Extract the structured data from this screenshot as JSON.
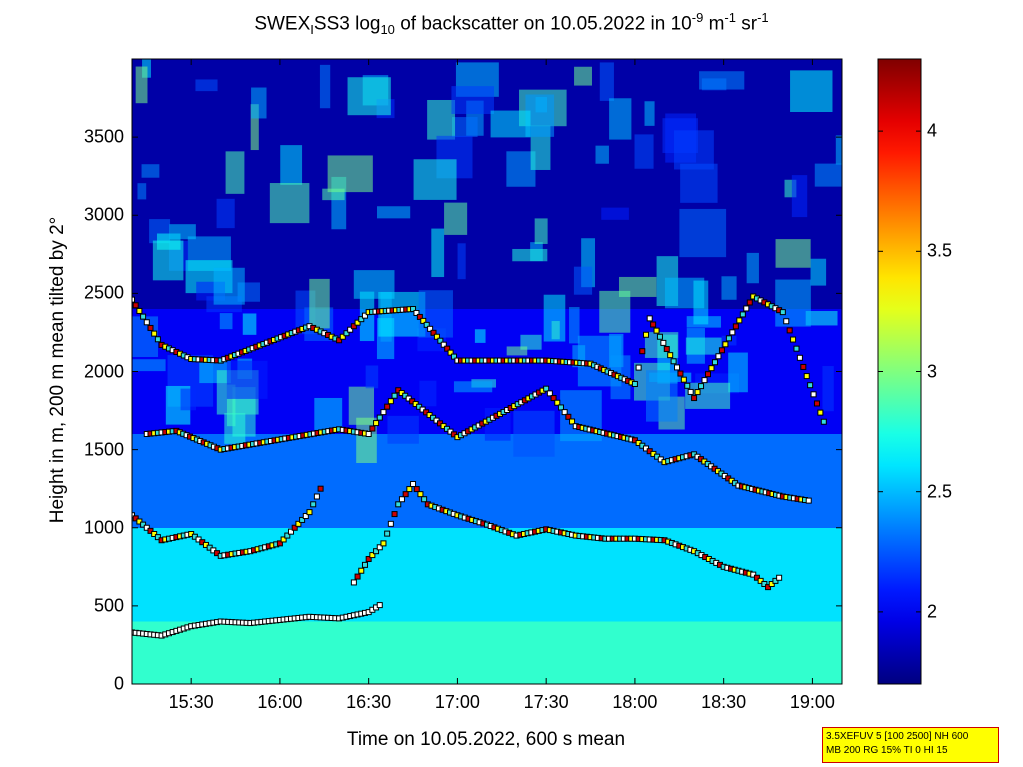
{
  "chart_data": {
    "type": "heatmap",
    "title_parts": {
      "a": "SWEX",
      "a_sub": "I",
      "b": "SS3 log",
      "b_sub": "10",
      "c": " of backscatter on 10.05.2022 in 10",
      "c_sup1": "-9",
      "d": " m",
      "d_sup": "-1",
      "e": " sr",
      "e_sup": "-1"
    },
    "xlabel": "Time on 10.05.2022, 600 s mean",
    "ylabel": "Height in m, 200 m mean tilted by 2°",
    "x_range": [
      "15:10",
      "19:10"
    ],
    "y_range": [
      0,
      4000
    ],
    "x_ticks": [
      "15:30",
      "16:00",
      "16:30",
      "17:00",
      "17:30",
      "18:00",
      "18:30",
      "19:00"
    ],
    "y_ticks": [
      0,
      500,
      1000,
      1500,
      2000,
      2500,
      3000,
      3500
    ],
    "colorbar": {
      "range": [
        1.7,
        4.3
      ],
      "ticks": [
        2,
        2.5,
        3,
        3.5,
        4
      ],
      "colormap": "jet"
    },
    "layers": [
      {
        "from": 0,
        "to": 400,
        "value": 2.8
      },
      {
        "from": 400,
        "to": 1000,
        "value": 2.6
      },
      {
        "from": 1000,
        "to": 1600,
        "value": 2.3
      },
      {
        "from": 1600,
        "to": 2400,
        "value": 2.0
      },
      {
        "from": 2400,
        "to": 4000,
        "value": 1.8
      }
    ],
    "cloud_base_series": [
      {
        "name": "layer_1",
        "points": [
          [
            "15:10",
            330
          ],
          [
            "15:20",
            310
          ],
          [
            "15:30",
            370
          ],
          [
            "15:40",
            400
          ],
          [
            "15:50",
            390
          ],
          [
            "16:00",
            410
          ],
          [
            "16:10",
            430
          ],
          [
            "16:20",
            420
          ],
          [
            "16:30",
            460
          ],
          [
            "16:35",
            520
          ]
        ]
      },
      {
        "name": "layer_2",
        "points": [
          [
            "16:25",
            650
          ],
          [
            "16:30",
            800
          ],
          [
            "16:35",
            900
          ],
          [
            "16:40",
            1150
          ],
          [
            "16:45",
            1280
          ],
          [
            "16:50",
            1150
          ],
          [
            "17:00",
            1080
          ],
          [
            "17:10",
            1020
          ],
          [
            "17:20",
            950
          ],
          [
            "17:30",
            990
          ],
          [
            "17:40",
            950
          ],
          [
            "17:50",
            930
          ],
          [
            "18:00",
            930
          ],
          [
            "18:10",
            920
          ],
          [
            "18:20",
            850
          ],
          [
            "18:30",
            750
          ],
          [
            "18:40",
            700
          ],
          [
            "18:45",
            620
          ],
          [
            "18:50",
            700
          ]
        ]
      },
      {
        "name": "layer_3",
        "points": [
          [
            "15:10",
            1080
          ],
          [
            "15:20",
            920
          ],
          [
            "15:30",
            960
          ],
          [
            "15:40",
            820
          ],
          [
            "15:50",
            850
          ],
          [
            "16:00",
            900
          ],
          [
            "16:10",
            1100
          ],
          [
            "16:15",
            1300
          ]
        ]
      },
      {
        "name": "layer_4",
        "points": [
          [
            "15:15",
            1600
          ],
          [
            "15:25",
            1620
          ],
          [
            "15:40",
            1500
          ],
          [
            "16:20",
            1630
          ],
          [
            "16:30",
            1600
          ],
          [
            "16:40",
            1880
          ],
          [
            "17:00",
            1580
          ],
          [
            "17:30",
            1890
          ],
          [
            "17:40",
            1650
          ],
          [
            "18:00",
            1560
          ],
          [
            "18:10",
            1420
          ],
          [
            "18:20",
            1470
          ],
          [
            "18:35",
            1270
          ],
          [
            "18:50",
            1200
          ],
          [
            "19:00",
            1170
          ]
        ]
      },
      {
        "name": "layer_5",
        "points": [
          [
            "15:10",
            2460
          ],
          [
            "15:20",
            2170
          ],
          [
            "15:30",
            2080
          ],
          [
            "15:40",
            2070
          ],
          [
            "16:10",
            2290
          ],
          [
            "16:20",
            2200
          ],
          [
            "16:30",
            2380
          ],
          [
            "16:45",
            2400
          ],
          [
            "17:00",
            2070
          ],
          [
            "17:30",
            2070
          ],
          [
            "17:45",
            2050
          ],
          [
            "18:00",
            1920
          ],
          [
            "18:05",
            2340
          ],
          [
            "18:20",
            1830
          ],
          [
            "18:40",
            2480
          ],
          [
            "18:50",
            2380
          ],
          [
            "19:05",
            1620
          ]
        ]
      }
    ]
  },
  "infobox": {
    "line1": "3.5XEFUV 5 [100 2500] NH 600",
    "line2": "MB 200 RG 15% TI 0 HI 15"
  }
}
